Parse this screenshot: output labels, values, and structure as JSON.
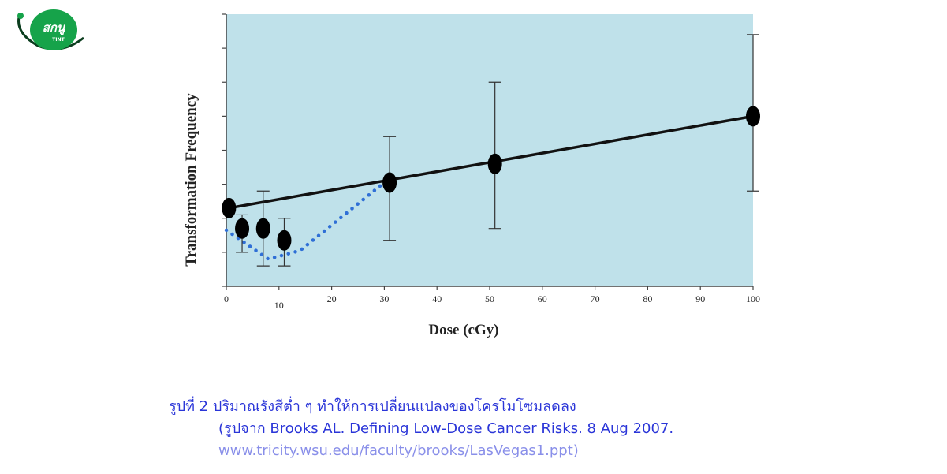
{
  "logo": {
    "text": "สกนู",
    "subtext": "TINT",
    "colors": {
      "green": "#16a34a",
      "dark": "#0b3d1e"
    }
  },
  "chart_data": {
    "type": "scatter",
    "xlabel": "Dose (cGy)",
    "ylabel": "Transformation Frequency",
    "xlim": [
      0,
      100
    ],
    "x_ticks": [
      "0",
      "10",
      "20",
      "30",
      "40",
      "50",
      "60",
      "70",
      "80",
      "90",
      "100"
    ],
    "y_tick_count": 9,
    "points": [
      {
        "x": 0.5,
        "y": 2.3,
        "lo": null,
        "hi": null
      },
      {
        "x": 3,
        "y": 1.7,
        "lo": 1.0,
        "hi": 2.1
      },
      {
        "x": 7,
        "y": 1.7,
        "lo": 0.6,
        "hi": 2.8
      },
      {
        "x": 11,
        "y": 1.35,
        "lo": 0.6,
        "hi": 2.0
      },
      {
        "x": 31,
        "y": 3.05,
        "lo": 1.35,
        "hi": 4.4
      },
      {
        "x": 51,
        "y": 3.6,
        "lo": 1.7,
        "hi": 6.0
      },
      {
        "x": 100,
        "y": 5.0,
        "lo": 2.8,
        "hi": 7.4
      }
    ],
    "linear_fit": [
      {
        "x": 0.5,
        "y": 2.3
      },
      {
        "x": 100,
        "y": 5.0
      }
    ],
    "dotted_curve": [
      {
        "x": 0,
        "y": 1.65
      },
      {
        "x": 8,
        "y": 0.8
      },
      {
        "x": 14,
        "y": 1.05
      },
      {
        "x": 30,
        "y": 3.05
      }
    ],
    "colors": {
      "plot_bg": "#bfe1ea",
      "line": "#111111",
      "dotted": "#2f6fd6",
      "marker": "#000000"
    },
    "grid": false
  },
  "caption": {
    "line1": "รูปที่ 2 ปริมาณรังสีต่ำ ๆ ทำให้การเปลี่ยนแปลงของโครโมโซมลดลง",
    "line2": "(รูปจาก Brooks AL. Defining Low-Dose Cancer Risks. 8 Aug 2007.",
    "line3": "www.tricity.wsu.edu/faculty/brooks/LasVegas1.ppt)"
  }
}
